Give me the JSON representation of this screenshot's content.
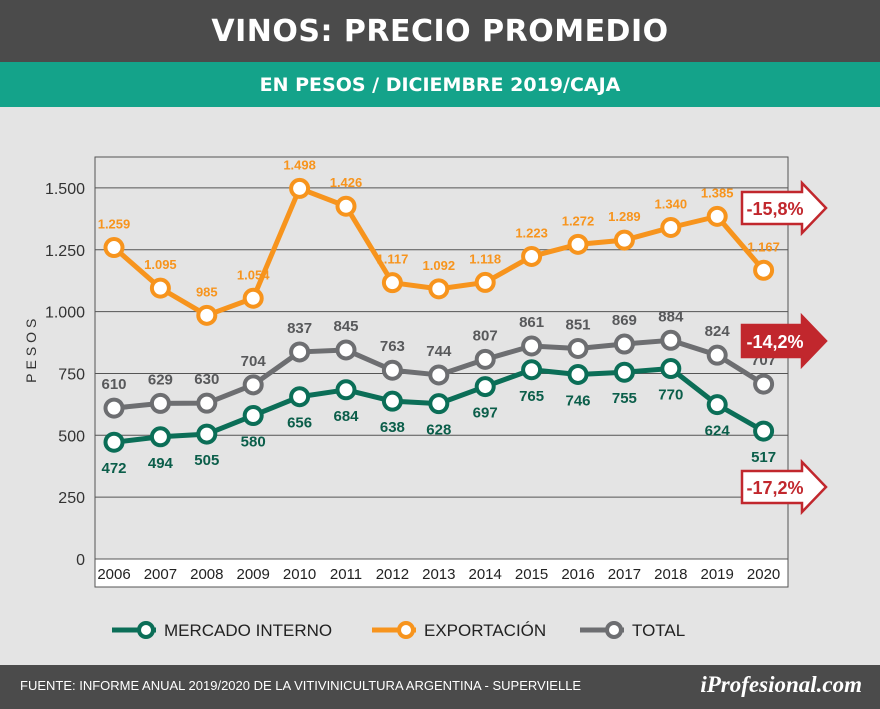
{
  "header": {
    "title": "VINOS: PRECIO PROMEDIO",
    "subtitle": "EN PESOS / DICIEMBRE 2019/CAJA"
  },
  "footer": {
    "source": "FUENTE:  INFORME ANUAL 2019/2020 DE LA VITIVINICULTURA ARGENTINA - SUPERVIELLE",
    "brand": "iProfesional.com"
  },
  "chart_data": {
    "type": "line",
    "title": "VINOS: PRECIO PROMEDIO",
    "subtitle": "EN PESOS / DICIEMBRE 2019/CAJA",
    "xlabel": "",
    "ylabel": "PESOS",
    "ylim": [
      0,
      1625
    ],
    "yticks": [
      0,
      250,
      500,
      750,
      1000,
      1250,
      1500
    ],
    "ytick_labels": [
      "0",
      "250",
      "500",
      "750",
      "1.000",
      "1.250",
      "1.500"
    ],
    "grid": "horizontal",
    "legend_position": "bottom",
    "categories": [
      "2006",
      "2007",
      "2008",
      "2009",
      "2010",
      "2011",
      "2012",
      "2013",
      "2014",
      "2015",
      "2016",
      "2017",
      "2018",
      "2019",
      "2020"
    ],
    "series": [
      {
        "name": "EXPORTACIÓN",
        "color": "#f7941d",
        "values": [
          1259,
          1095,
          985,
          1054,
          1498,
          1426,
          1117,
          1092,
          1118,
          1223,
          1272,
          1289,
          1340,
          1385,
          1167
        ],
        "labels": [
          "1.259",
          "1.095",
          "985",
          "1.054",
          "1.498",
          "1.426",
          "1.117",
          "1.092",
          "1.118",
          "1.223",
          "1.272",
          "1.289",
          "1.340",
          "1.385",
          "1.167"
        ],
        "change": "-15,8%"
      },
      {
        "name": "TOTAL",
        "color": "#6d6e71",
        "values": [
          610,
          629,
          630,
          704,
          837,
          845,
          763,
          744,
          807,
          861,
          851,
          869,
          884,
          824,
          707
        ],
        "labels": [
          "610",
          "629",
          "630",
          "704",
          "837",
          "845",
          "763",
          "744",
          "807",
          "861",
          "851",
          "869",
          "884",
          "824",
          "707"
        ],
        "change": "-14,2%"
      },
      {
        "name": "MERCADO INTERNO",
        "color": "#0b6e57",
        "values": [
          472,
          494,
          505,
          580,
          656,
          684,
          638,
          628,
          697,
          765,
          746,
          755,
          770,
          624,
          517
        ],
        "labels": [
          "472",
          "494",
          "505",
          "580",
          "656",
          "684",
          "638",
          "628",
          "697",
          "765",
          "746",
          "755",
          "770",
          "624",
          "517"
        ],
        "change": "-17,2%"
      }
    ],
    "legend": [
      "MERCADO INTERNO",
      "EXPORTACIÓN",
      "TOTAL"
    ]
  }
}
